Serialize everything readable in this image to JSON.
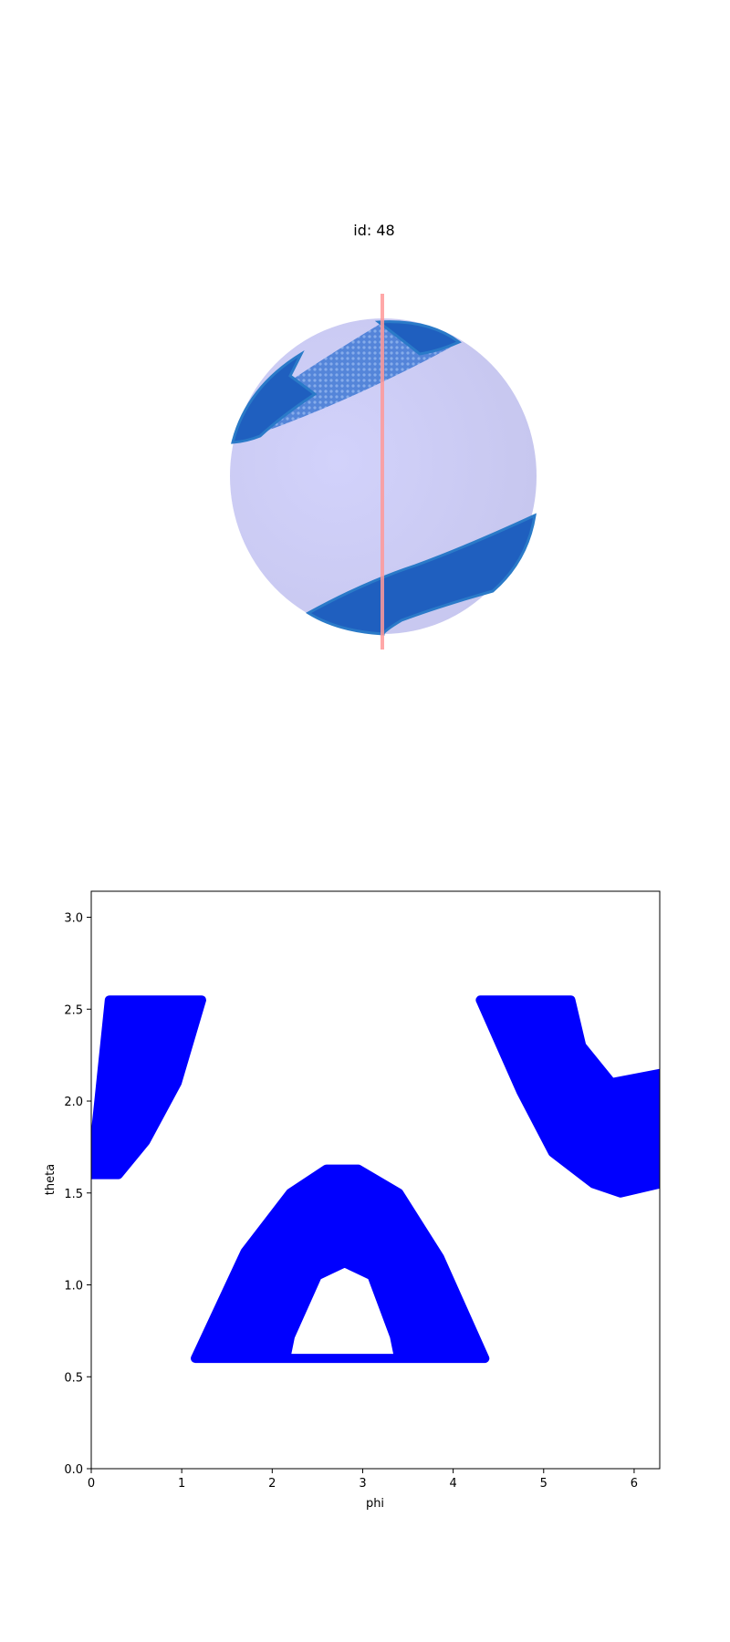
{
  "chart_data": [
    {
      "type": "3d-sphere",
      "title": "id: 48",
      "sphere_color": "#c8c8f5",
      "band_color": "#1f5fbf",
      "axis_line_color": "#ff9999"
    },
    {
      "type": "scatter",
      "xlabel": "phi",
      "ylabel": "theta",
      "xlim": [
        0,
        6.283
      ],
      "ylim": [
        0,
        3.1416
      ],
      "xticks": [
        "0",
        "1",
        "2",
        "3",
        "4",
        "5",
        "6"
      ],
      "yticks": [
        "0.0",
        "0.5",
        "1.0",
        "1.5",
        "2.0",
        "2.5",
        "3.0"
      ],
      "grid": false,
      "marker_color": "#0000ff",
      "regions": [
        {
          "name": "upper-left band",
          "outline": [
            [
              0,
              1.6
            ],
            [
              0.2,
              2.55
            ],
            [
              1.22,
              2.55
            ],
            [
              0.95,
              2.1
            ],
            [
              0.6,
              1.78
            ],
            [
              0.3,
              1.6
            ],
            [
              0,
              1.6
            ]
          ]
        },
        {
          "name": "center arch outer",
          "outline": [
            [
              1.15,
              0.6
            ],
            [
              1.7,
              1.18
            ],
            [
              2.2,
              1.5
            ],
            [
              2.6,
              1.63
            ],
            [
              2.95,
              1.63
            ],
            [
              3.4,
              1.5
            ],
            [
              3.85,
              1.15
            ],
            [
              4.35,
              0.6
            ]
          ]
        },
        {
          "name": "center arch inner",
          "outline": [
            [
              2.15,
              0.6
            ],
            [
              2.2,
              0.72
            ],
            [
              2.5,
              1.05
            ],
            [
              2.8,
              1.12
            ],
            [
              3.1,
              1.05
            ],
            [
              3.35,
              0.72
            ],
            [
              3.4,
              0.6
            ]
          ]
        },
        {
          "name": "upper-right band",
          "outline": [
            [
              4.3,
              2.55
            ],
            [
              5.3,
              2.55
            ],
            [
              5.42,
              2.3
            ],
            [
              5.75,
              2.1
            ],
            [
              6.283,
              2.15
            ],
            [
              6.283,
              1.55
            ],
            [
              5.85,
              1.5
            ],
            [
              5.55,
              1.55
            ],
            [
              5.1,
              1.72
            ],
            [
              4.75,
              2.05
            ],
            [
              4.3,
              2.55
            ]
          ]
        }
      ]
    }
  ]
}
